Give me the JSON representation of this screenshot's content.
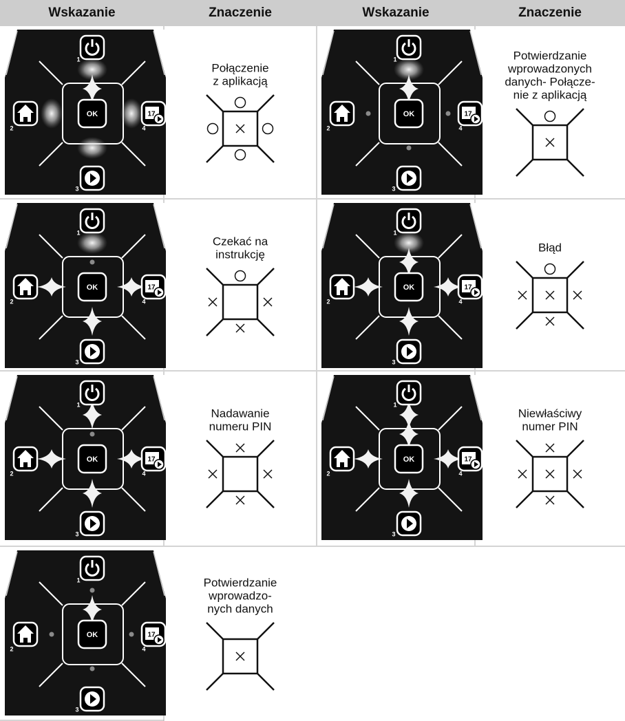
{
  "header": {
    "columns": [
      "Wskazanie",
      "Znaczenie",
      "Wskazanie",
      "Znaczenie"
    ]
  },
  "panel": {
    "ok": "OK",
    "keys": [
      "1",
      "2",
      "3",
      "4"
    ],
    "calendar": "17"
  },
  "table": {
    "meanings": [
      [
        "Połączenie",
        "z aplikacją"
      ],
      [
        "Potwierdzanie",
        "wprowadzonych",
        "danych- Połącze-",
        "nie z aplikacją"
      ],
      [
        "Czekać na",
        "instrukcję"
      ],
      [
        "Błąd"
      ],
      [
        "Nadawanie",
        "numeru PIN"
      ],
      [
        "Niewłaściwy",
        "numer PIN"
      ],
      [
        "Potwierdzanie",
        "wprowadzo-",
        "nych danych"
      ]
    ]
  }
}
